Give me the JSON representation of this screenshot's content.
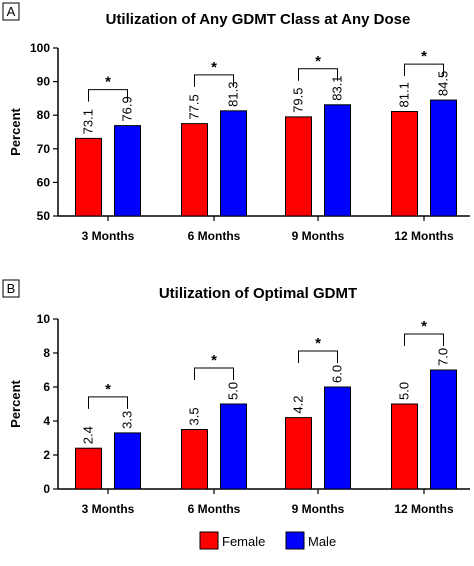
{
  "colors": {
    "female": "#ff0000",
    "male": "#0000ff"
  },
  "legend": {
    "female": "Female",
    "male": "Male"
  },
  "chart_data": [
    {
      "panel": "A",
      "type": "bar",
      "title": "Utilization of Any GDMT Class at Any Dose",
      "ylabel": "Percent",
      "xlabel": "",
      "ylim": [
        50,
        100
      ],
      "yticks": [
        50,
        60,
        70,
        80,
        90,
        100
      ],
      "categories": [
        "3 Months",
        "6 Months",
        "9 Months",
        "12 Months"
      ],
      "series": [
        {
          "name": "Female",
          "values": [
            73.1,
            77.5,
            79.5,
            81.1
          ],
          "labels": [
            "73.1",
            "77.5",
            "79.5",
            "81.1"
          ]
        },
        {
          "name": "Male",
          "values": [
            76.9,
            81.3,
            83.1,
            84.5
          ],
          "labels": [
            "76.9",
            "81.3",
            "83.1",
            "84.5"
          ]
        }
      ],
      "significance": [
        "*",
        "*",
        "*",
        "*"
      ],
      "legend": "bottom-center"
    },
    {
      "panel": "B",
      "type": "bar",
      "title": "Utilization of Optimal GDMT",
      "ylabel": "Percent",
      "xlabel": "",
      "ylim": [
        0,
        10
      ],
      "yticks": [
        0,
        2,
        4,
        6,
        8,
        10
      ],
      "categories": [
        "3 Months",
        "6 Months",
        "9 Months",
        "12 Months"
      ],
      "series": [
        {
          "name": "Female",
          "values": [
            2.4,
            3.5,
            4.2,
            5.0
          ],
          "labels": [
            "2.4",
            "3.5",
            "4.2",
            "5.0"
          ]
        },
        {
          "name": "Male",
          "values": [
            3.3,
            5.0,
            6.0,
            7.0
          ],
          "labels": [
            "3.3",
            "5.0",
            "6.0",
            "7.0"
          ]
        }
      ],
      "significance": [
        "*",
        "*",
        "*",
        "*"
      ],
      "legend": "bottom-center"
    }
  ]
}
